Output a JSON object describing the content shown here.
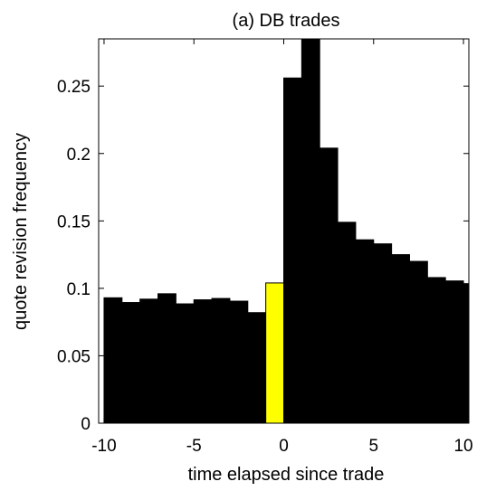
{
  "chart_data": {
    "type": "bar",
    "title": "(a) DB trades",
    "xlabel": "time elapsed since trade",
    "ylabel": "quote revision frequency",
    "xlim": [
      -10.3,
      10.3
    ],
    "ylim": [
      0,
      0.285
    ],
    "grid": false,
    "x_ticks": [
      -10,
      -5,
      0,
      5,
      10
    ],
    "x_tick_labels": [
      "-10",
      "-5",
      "0",
      "5",
      "10"
    ],
    "y_ticks": [
      0,
      0.05,
      0.1,
      0.15,
      0.2,
      0.25
    ],
    "y_tick_labels": [
      "0",
      "0.05",
      "0.1",
      "0.15",
      "0.2",
      "0.25"
    ],
    "bar_width": 1,
    "bars": [
      {
        "x": -9.5,
        "value": 0.093,
        "color": "#000000"
      },
      {
        "x": -8.5,
        "value": 0.0895,
        "color": "#000000"
      },
      {
        "x": -7.5,
        "value": 0.092,
        "color": "#000000"
      },
      {
        "x": -6.5,
        "value": 0.096,
        "color": "#000000"
      },
      {
        "x": -5.5,
        "value": 0.0885,
        "color": "#000000"
      },
      {
        "x": -4.5,
        "value": 0.0915,
        "color": "#000000"
      },
      {
        "x": -3.5,
        "value": 0.0925,
        "color": "#000000"
      },
      {
        "x": -2.5,
        "value": 0.0905,
        "color": "#000000"
      },
      {
        "x": -1.5,
        "value": 0.082,
        "color": "#000000"
      },
      {
        "x": -0.5,
        "value": 0.104,
        "color": "#ffff00"
      },
      {
        "x": 0.5,
        "value": 0.256,
        "color": "#000000"
      },
      {
        "x": 1.5,
        "value": 0.3,
        "color": "#000000"
      },
      {
        "x": 2.5,
        "value": 0.204,
        "color": "#000000"
      },
      {
        "x": 3.5,
        "value": 0.149,
        "color": "#000000"
      },
      {
        "x": 4.5,
        "value": 0.136,
        "color": "#000000"
      },
      {
        "x": 5.5,
        "value": 0.133,
        "color": "#000000"
      },
      {
        "x": 6.5,
        "value": 0.125,
        "color": "#000000"
      },
      {
        "x": 7.5,
        "value": 0.12,
        "color": "#000000"
      },
      {
        "x": 8.5,
        "value": 0.108,
        "color": "#000000"
      },
      {
        "x": 9.5,
        "value": 0.1055,
        "color": "#000000"
      },
      {
        "x": 10.5,
        "value": 0.1035,
        "color": "#000000"
      }
    ],
    "colors": {
      "bar": "#000000",
      "highlight": "#ffff00",
      "axis": "#000000",
      "background": "#ffffff"
    }
  }
}
